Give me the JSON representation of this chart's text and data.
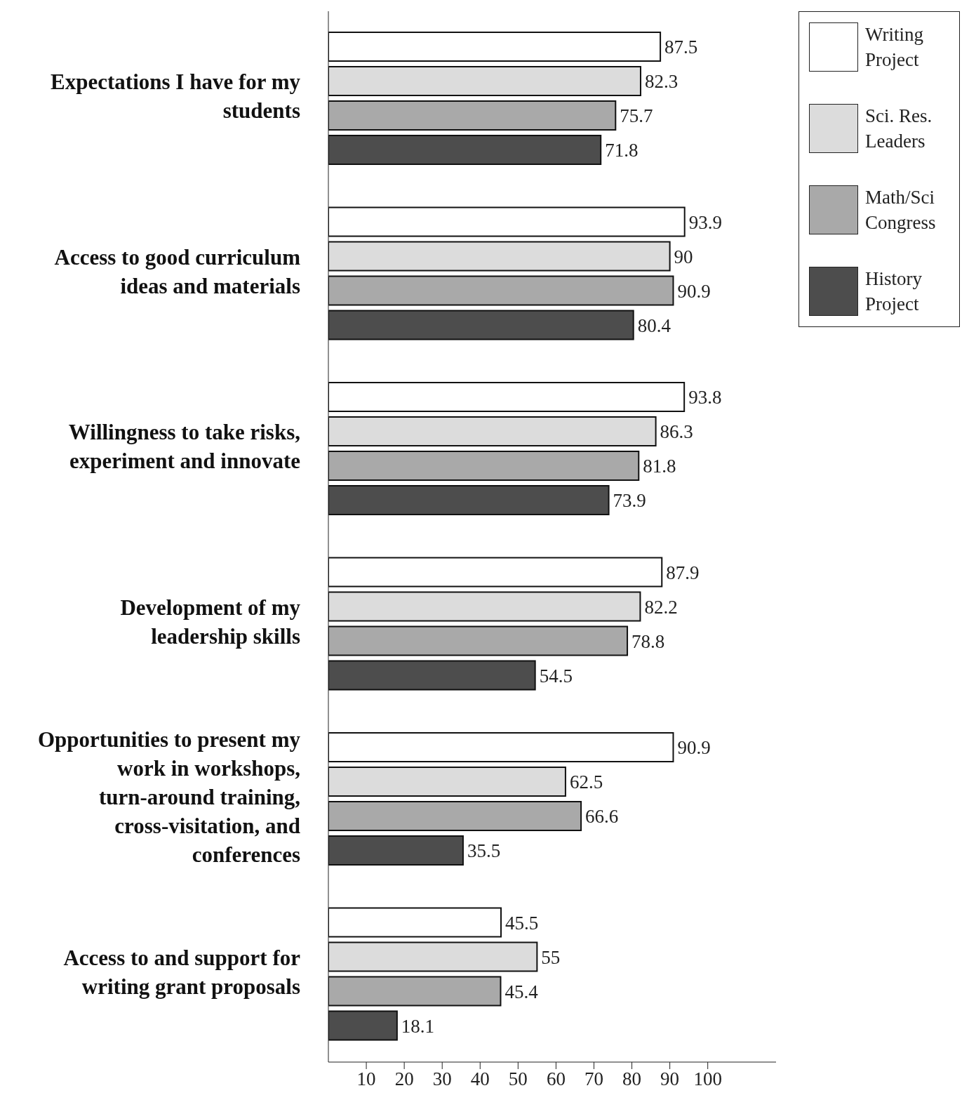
{
  "chart_data": {
    "type": "bar",
    "orientation": "horizontal",
    "categories": [
      "Expectations I have for my students",
      "Access to good curriculum ideas and materials",
      "Willingness to take risks, experiment and innovate",
      "Development of my leadership skills",
      "Opportunities to present my work in workshops, turn-around training, cross-visitation, and conferences",
      "Access to and support for writing grant proposals"
    ],
    "series": [
      {
        "name": "Writing Project",
        "color": "#ffffff",
        "values": [
          87.5,
          93.9,
          93.8,
          87.9,
          90.9,
          45.5
        ]
      },
      {
        "name": "Sci. Res. Leaders",
        "color": "#dcdcdc",
        "values": [
          82.3,
          90,
          86.3,
          82.2,
          62.5,
          55
        ]
      },
      {
        "name": "Math/Sci Congress",
        "color": "#a9a9a9",
        "values": [
          75.7,
          90.9,
          81.8,
          78.8,
          66.6,
          45.4
        ]
      },
      {
        "name": "History Project",
        "color": "#4d4d4d",
        "values": [
          71.8,
          80.4,
          73.9,
          54.5,
          35.5,
          18.1
        ]
      }
    ],
    "xlim": [
      0,
      118
    ],
    "xticks": [
      10,
      20,
      30,
      40,
      50,
      60,
      70,
      80,
      90,
      100
    ],
    "data_labels": true,
    "legend": "top right",
    "grid": false
  }
}
